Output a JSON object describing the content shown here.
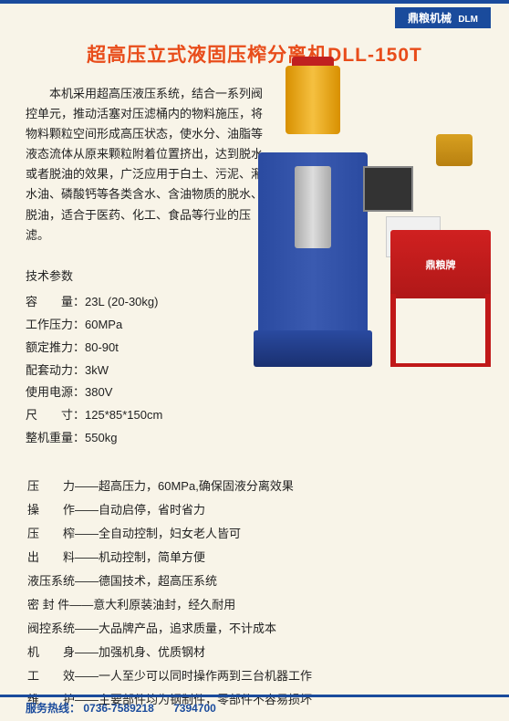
{
  "brand": {
    "tab_text": "鼎粮机械",
    "tab_bg": "#1a4b9c",
    "tab_color": "#ffffff"
  },
  "title": {
    "text": "超高压立式液固压榨分离机DLL-150T",
    "color": "#e84c1a",
    "fontsize": 21
  },
  "description": "本机采用超高压液压系统，结合一系列阀控单元，推动活塞对压滤桶内的物料施压，将物料颗粒空间形成高压状态，使水分、油脂等液态流体从原来颗粒附着位置挤出，达到脱水或者脱油的效果，广泛应用于白土、污泥、潲水油、磷酸钙等各类含水、含油物质的脱水、脱油，适合于医药、化工、食品等行业的压滤。",
  "machine": {
    "brand_label": "鼎粮牌",
    "colors": {
      "press_blue": "#2a4aa0",
      "cylinder_yellow": "#f5c040",
      "cylinder_red_cap": "#c02020",
      "stand_red": "#d02020",
      "motor_yellow": "#d8a020",
      "panel_dark": "#333333",
      "panel_white": "#f0f0f0"
    }
  },
  "specs": {
    "header": "技术参数",
    "rows": [
      {
        "label": "容　　量：",
        "value": "23L (20-30kg)"
      },
      {
        "label": "工作压力：",
        "value": "60MPa"
      },
      {
        "label": "额定推力：",
        "value": "80-90t"
      },
      {
        "label": "配套动力：",
        "value": "3kW"
      },
      {
        "label": "使用电源：",
        "value": "380V"
      },
      {
        "label": "尺　　寸：",
        "value": "125*85*150cm"
      },
      {
        "label": "整机重量：",
        "value": "550kg"
      }
    ]
  },
  "features": [
    {
      "label": "压　　力——",
      "value": "超高压力，60MPa,确保固液分离效果"
    },
    {
      "label": "操　　作——",
      "value": "自动启停，省时省力"
    },
    {
      "label": "压　　榨——",
      "value": "全自动控制，妇女老人皆可"
    },
    {
      "label": "出　　料——",
      "value": "机动控制，简单方便"
    },
    {
      "label": "液压系统——",
      "value": "德国技术，超高压系统"
    },
    {
      "label": "密 封 件——",
      "value": "意大利原装油封，经久耐用"
    },
    {
      "label": "阀控系统——",
      "value": "大品牌产品，追求质量，不计成本"
    },
    {
      "label": "机　　身——",
      "value": "加强机身、优质钢材"
    },
    {
      "label": "工　　效——",
      "value": "一人至少可以同时操作两到三台机器工作"
    },
    {
      "label": "维　　护——",
      "value": "主要部件均为钢制件，零部件不容易损坏"
    }
  ],
  "footer": {
    "label": "服务热线：",
    "phone1": "0736-7589218",
    "phone2": "7394700",
    "color": "#1a4b9c"
  },
  "page_bg": "#f8f4e8"
}
